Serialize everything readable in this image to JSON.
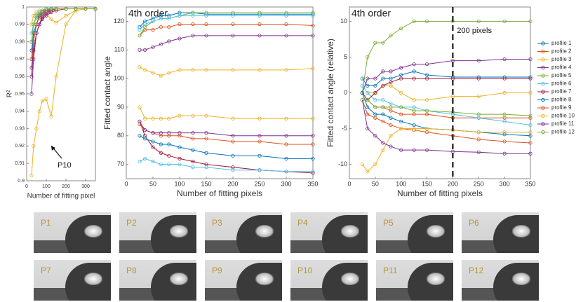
{
  "chart_data": [
    {
      "type": "line",
      "xlabel": "Number of fitting pixel",
      "ylabel": "R²",
      "annotation": "P10",
      "x": [
        25,
        35,
        50,
        65,
        80,
        100,
        125,
        150,
        200,
        250,
        300,
        350
      ],
      "xlim": [
        0,
        350
      ],
      "xticks": [
        0,
        100,
        200,
        300
      ],
      "ylim": [
        0.9,
        1
      ],
      "yticks": [
        0.9,
        0.91,
        0.92,
        0.93,
        0.94,
        0.95,
        0.96,
        0.97,
        0.98,
        0.99,
        1
      ],
      "series": [
        {
          "color": "#0072BD",
          "values": [
            0.97,
            0.985,
            0.99,
            0.995,
            0.997,
            0.998,
            0.999,
            0.999,
            0.999,
            0.999,
            0.999,
            0.999
          ]
        },
        {
          "color": "#D95319",
          "values": [
            0.96,
            0.98,
            0.99,
            0.995,
            0.997,
            0.998,
            0.998,
            0.999,
            0.999,
            0.999,
            0.999,
            0.999
          ]
        },
        {
          "color": "#EDB120",
          "values": [
            0.99,
            0.995,
            0.997,
            0.998,
            0.998,
            0.996,
            0.993,
            0.991,
            0.995,
            0.998,
            0.999,
            0.999
          ]
        },
        {
          "color": "#7E2F8E",
          "values": [
            0.95,
            0.97,
            0.985,
            0.99,
            0.995,
            0.997,
            0.998,
            0.999,
            0.999,
            0.999,
            0.999,
            0.999
          ]
        },
        {
          "color": "#77AC30",
          "values": [
            0.98,
            0.99,
            0.995,
            0.997,
            0.998,
            0.999,
            0.999,
            0.999,
            0.999,
            0.999,
            0.999,
            0.999
          ]
        },
        {
          "color": "#4DBEEE",
          "values": [
            0.985,
            0.99,
            0.995,
            0.997,
            0.998,
            0.999,
            0.999,
            0.999,
            0.999,
            0.999,
            0.999,
            0.999
          ]
        },
        {
          "color": "#A2142F",
          "values": [
            0.965,
            0.975,
            0.985,
            0.99,
            0.993,
            0.995,
            0.997,
            0.998,
            0.999,
            0.999,
            0.999,
            0.999
          ]
        },
        {
          "color": "#0072BD",
          "values": [
            0.975,
            0.985,
            0.99,
            0.995,
            0.997,
            0.998,
            0.999,
            0.999,
            0.999,
            0.999,
            0.999,
            0.999
          ]
        },
        {
          "color": "#D95319",
          "values": [
            0.97,
            0.98,
            0.99,
            0.994,
            0.996,
            0.998,
            0.998,
            0.999,
            0.999,
            0.999,
            0.999,
            0.999
          ]
        },
        {
          "color": "#EDB120",
          "values": [
            0.903,
            0.92,
            0.93,
            0.94,
            0.946,
            0.947,
            0.937,
            0.96,
            0.99,
            0.998,
            0.999,
            0.999
          ]
        },
        {
          "color": "#7E2F8E",
          "values": [
            0.96,
            0.975,
            0.985,
            0.99,
            0.994,
            0.996,
            0.998,
            0.999,
            0.999,
            0.999,
            0.999,
            0.999
          ]
        },
        {
          "color": "#77AC30",
          "values": [
            0.98,
            0.99,
            0.994,
            0.996,
            0.998,
            0.999,
            0.999,
            0.999,
            0.999,
            0.999,
            0.999,
            0.999
          ]
        }
      ]
    },
    {
      "type": "line",
      "title": "4th order",
      "xlabel": "Number of fitting pixels",
      "ylabel": "Fitted contact angle",
      "x": [
        25,
        35,
        50,
        65,
        80,
        100,
        125,
        150,
        200,
        250,
        300,
        350
      ],
      "xlim": [
        0,
        350
      ],
      "xticks": [
        0,
        50,
        100,
        150,
        200,
        250,
        300,
        350
      ],
      "ylim": [
        65,
        125
      ],
      "yticks": [
        70,
        80,
        90,
        100,
        110,
        120
      ],
      "series": [
        {
          "color": "#0072BD",
          "values": [
            118,
            120,
            121,
            122,
            122,
            123,
            123,
            122.5,
            122.5,
            122.5,
            122.5,
            122.5
          ]
        },
        {
          "color": "#D95319",
          "values": [
            115,
            117,
            117,
            118,
            118,
            119,
            119,
            119,
            119,
            119,
            119,
            118.5
          ]
        },
        {
          "color": "#EDB120",
          "values": [
            104,
            103,
            102,
            101,
            102,
            103,
            103,
            103,
            103,
            103,
            103,
            103.5
          ]
        },
        {
          "color": "#7E2F8E",
          "values": [
            110,
            110,
            111,
            112,
            113,
            114,
            115,
            115,
            115,
            115,
            115,
            115
          ]
        },
        {
          "color": "#77AC30",
          "values": [
            115,
            118,
            120,
            121,
            121,
            122,
            123,
            123,
            123,
            123,
            123,
            123
          ]
        },
        {
          "color": "#4DBEEE",
          "values": [
            117,
            119,
            120,
            121,
            121,
            122,
            122,
            122,
            122,
            122,
            122,
            122
          ]
        },
        {
          "color": "#A2142F",
          "values": [
            85,
            80,
            76,
            74,
            73,
            72,
            71,
            70,
            69,
            68,
            67.5,
            67
          ]
        },
        {
          "color": "#0072BD",
          "values": [
            80,
            79,
            78,
            77,
            77,
            76,
            75,
            74,
            73,
            73,
            72,
            72
          ]
        },
        {
          "color": "#D95319",
          "values": [
            84,
            82,
            81,
            80,
            80,
            80,
            79,
            79,
            78,
            78,
            77,
            77
          ]
        },
        {
          "color": "#EDB120",
          "values": [
            90,
            86,
            86,
            86,
            86,
            87,
            87,
            87,
            86,
            86,
            86,
            86
          ]
        },
        {
          "color": "#7E2F8E",
          "values": [
            85,
            82,
            81,
            81,
            81,
            81,
            81,
            81,
            80,
            80,
            80,
            80
          ]
        },
        {
          "color": "#4DBEEE",
          "values": [
            71,
            72,
            71,
            70,
            70,
            70,
            69,
            69,
            68,
            68,
            67.5,
            67.5
          ]
        }
      ]
    },
    {
      "type": "line",
      "title": "4th order",
      "xlabel": "Number of fitting pixels",
      "ylabel": "Fitted contact angle (relative)",
      "annotation": "200 pixels",
      "vline": 200,
      "legend": "right",
      "x": [
        25,
        35,
        50,
        65,
        80,
        100,
        125,
        150,
        200,
        250,
        300,
        350
      ],
      "xlim": [
        0,
        350
      ],
      "xticks": [
        0,
        50,
        100,
        150,
        200,
        250,
        300,
        350
      ],
      "ylim": [
        -12,
        12
      ],
      "yticks": [
        -10,
        -5,
        0,
        5,
        10
      ],
      "series": [
        {
          "name": "profile 1",
          "color": "#0072BD",
          "values": [
            2,
            1,
            1,
            2,
            2,
            2.5,
            3,
            2.5,
            2.2,
            2.2,
            2.2,
            2.2
          ]
        },
        {
          "name": "profile 2",
          "color": "#D95319",
          "values": [
            0,
            -1,
            -2,
            -2,
            -2.5,
            -3,
            -3,
            -3,
            -3.5,
            -3.5,
            -3.5,
            -3.5
          ]
        },
        {
          "name": "profile 3",
          "color": "#EDB120",
          "values": [
            1,
            0,
            0,
            1,
            1,
            0,
            -1,
            -1,
            -0.5,
            -0.5,
            0,
            0
          ]
        },
        {
          "name": "profile 4",
          "color": "#7E2F8E",
          "values": [
            0,
            2,
            2,
            3,
            3,
            3.5,
            4,
            4,
            4.5,
            4.5,
            4.7,
            4.7
          ]
        },
        {
          "name": "profile 5",
          "color": "#77AC30",
          "values": [
            0,
            5,
            7,
            7,
            8,
            9,
            10,
            10,
            10,
            10,
            10,
            10
          ]
        },
        {
          "name": "profile 6",
          "color": "#4DBEEE",
          "values": [
            1,
            0,
            -1,
            -1,
            -1.5,
            -2,
            -2,
            -2.5,
            -3,
            -3.5,
            -4,
            -4.5
          ]
        },
        {
          "name": "profile 7",
          "color": "#A2142F",
          "values": [
            0,
            -1,
            0,
            1,
            1.5,
            2,
            2,
            2,
            2,
            2,
            2,
            2
          ]
        },
        {
          "name": "profile 8",
          "color": "#0072BD",
          "values": [
            0,
            -2,
            -3,
            -3,
            -3.5,
            -4,
            -4.5,
            -5,
            -5.2,
            -5.5,
            -5.8,
            -6
          ]
        },
        {
          "name": "profile 9",
          "color": "#D95319",
          "values": [
            -1,
            -3,
            -3.5,
            -4,
            -4.5,
            -5,
            -5.2,
            -5.5,
            -6,
            -6.5,
            -6.8,
            -7
          ]
        },
        {
          "name": "profile 10",
          "color": "#EDB120",
          "values": [
            -10,
            -11,
            -10,
            -8,
            -6,
            -5,
            -5,
            -5,
            -5.2,
            -5.5,
            -5.5,
            -5.5
          ]
        },
        {
          "name": "profile 11",
          "color": "#7E2F8E",
          "values": [
            -1,
            -5,
            -6,
            -7,
            -7.5,
            -8,
            -8,
            -8,
            -8.2,
            -8.3,
            -8.5,
            -8.5
          ]
        },
        {
          "name": "profile 12",
          "color": "#77AC30",
          "values": [
            -1,
            -1,
            -2,
            -2,
            -2,
            -2,
            -2.5,
            -2.5,
            -2.7,
            -3,
            -3,
            -3.2
          ]
        }
      ]
    }
  ],
  "panels": [
    "P1",
    "P2",
    "P3",
    "P4",
    "P5",
    "P6",
    "P7",
    "P8",
    "P9",
    "P10",
    "P11",
    "P12"
  ]
}
